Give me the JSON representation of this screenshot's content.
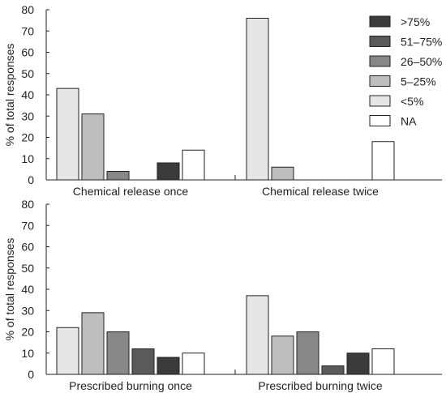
{
  "chart_data": {
    "type": "bar",
    "ylabel": "% of total responses",
    "ylim": [
      0,
      80
    ],
    "yticks": [
      0,
      10,
      20,
      30,
      40,
      50,
      60,
      70,
      80
    ],
    "legend": {
      "placement": "top-right",
      "entries": [
        {
          "label": ">75%",
          "color": "#3b3b3b"
        },
        {
          "label": "51–75%",
          "color": "#5a5a5a"
        },
        {
          "label": "26–50%",
          "color": "#878787"
        },
        {
          "label": "5–25%",
          "color": "#bdbdbd"
        },
        {
          "label": "<5%",
          "color": "#e6e6e6"
        },
        {
          "label": "NA",
          "color": "#ffffff"
        }
      ]
    },
    "panels": [
      {
        "groups": [
          {
            "label": "Chemical release once",
            "values": {
              "<5%": 43,
              "5–25%": 31,
              "26–50%": 4,
              "51–75%": 0,
              ">75%": 8,
              "NA": 14
            }
          },
          {
            "label": "Chemical release twice",
            "values": {
              "<5%": 76,
              "5–25%": 6,
              "26–50%": 0,
              "51–75%": 0,
              ">75%": 0,
              "NA": 18
            }
          }
        ]
      },
      {
        "groups": [
          {
            "label": "Prescribed burning once",
            "values": {
              "<5%": 22,
              "5–25%": 29,
              "26–50%": 20,
              "51–75%": 12,
              ">75%": 8,
              "NA": 10
            }
          },
          {
            "label": "Prescribed burning twice",
            "values": {
              "<5%": 37,
              "5–25%": 18,
              "26–50%": 20,
              "51–75%": 4,
              ">75%": 10,
              "NA": 12
            }
          }
        ]
      }
    ]
  }
}
